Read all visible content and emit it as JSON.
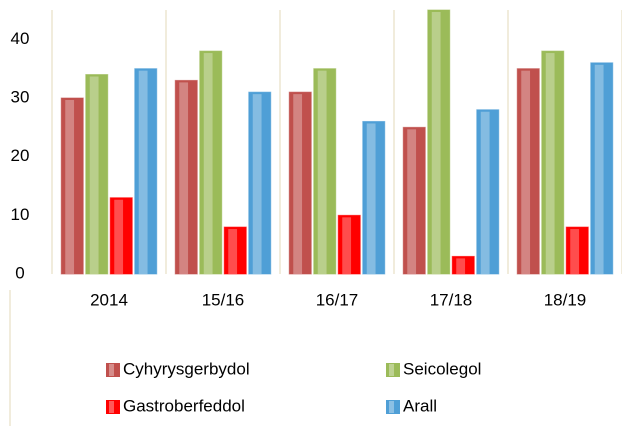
{
  "chart_data": {
    "type": "bar",
    "categories": [
      "2014",
      "15/16",
      "16/17",
      "17/18",
      "18/19"
    ],
    "series": [
      {
        "name": "Cyhyrysgerbydol",
        "color": "#c0504d",
        "values": [
          30,
          33,
          31,
          25,
          35
        ]
      },
      {
        "name": "Seicolegol",
        "color": "#9bbb59",
        "values": [
          34,
          38,
          35,
          45,
          38
        ]
      },
      {
        "name": "Gastroberfeddol",
        "color": "#ff0000",
        "values": [
          13,
          8,
          10,
          3,
          8
        ]
      },
      {
        "name": "Arall",
        "color": "#4f9fd6",
        "values": [
          35,
          31,
          26,
          28,
          36
        ]
      }
    ],
    "ylim": [
      0,
      45
    ],
    "yticks": [
      0,
      10,
      20,
      30,
      40
    ],
    "grid": false,
    "legend": "bottom"
  }
}
